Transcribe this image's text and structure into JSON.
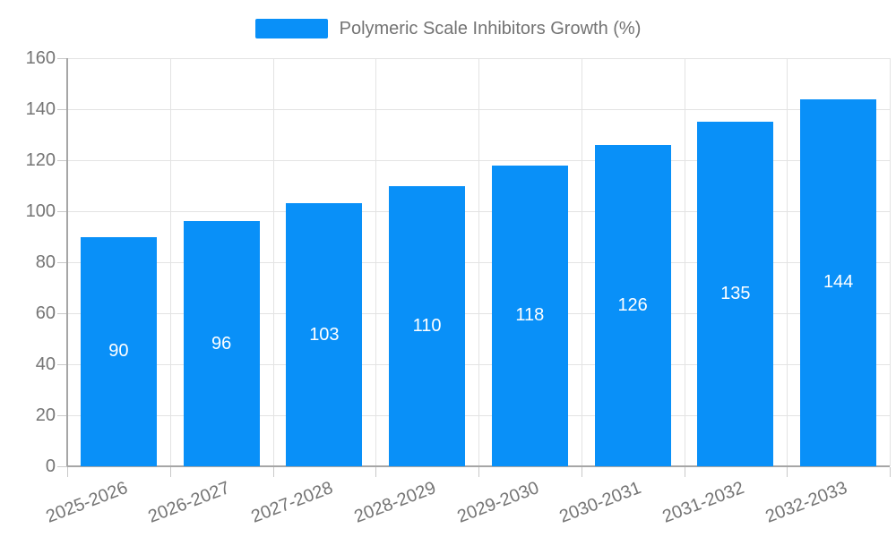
{
  "legend": {
    "label": "Polymeric Scale Inhibitors Growth (%)"
  },
  "chart_data": {
    "type": "bar",
    "title": "",
    "series_name": "Polymeric Scale Inhibitors Growth (%)",
    "categories": [
      "2025-2026",
      "2026-2027",
      "2027-2028",
      "2028-2029",
      "2029-2030",
      "2030-2031",
      "2031-2032",
      "2032-2033"
    ],
    "values": [
      90,
      96,
      103,
      110,
      118,
      126,
      135,
      144
    ],
    "yticks": [
      0,
      20,
      40,
      60,
      80,
      100,
      120,
      140,
      160
    ],
    "ylim": [
      0,
      160
    ],
    "xlabel": "",
    "ylabel": "",
    "grid": true,
    "legend_position": "top-center",
    "bar_color": "#0990f8",
    "value_label_color": "#ffffff",
    "axis_text_color": "#757575",
    "grid_color": "#e3e3e3",
    "axis_line_color": "#a6a6a6"
  }
}
